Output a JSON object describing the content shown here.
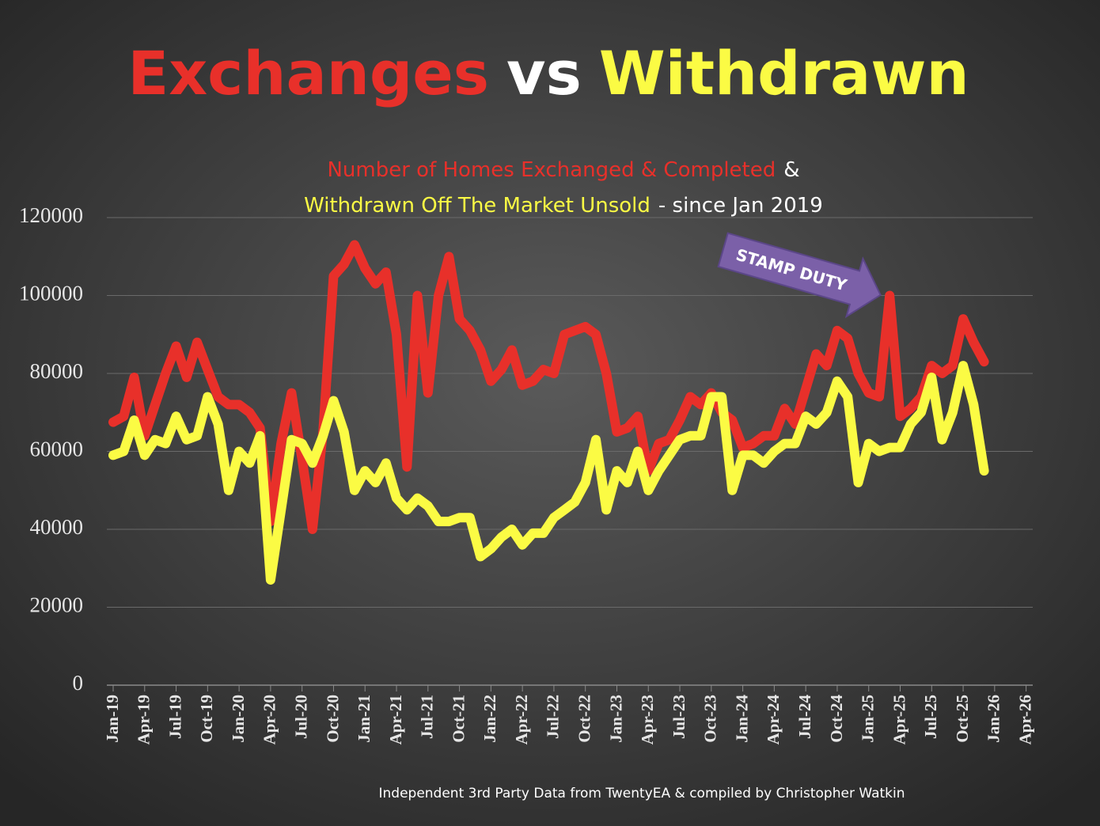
{
  "chart_data": {
    "type": "line",
    "title_parts": [
      {
        "text": "Exchanges",
        "color": "#e8302a"
      },
      {
        "text": "vs",
        "color": "#ffffff"
      },
      {
        "text": "Withdrawn",
        "color": "#fbfb44"
      }
    ],
    "subtitle_lines": [
      [
        {
          "text": "Number of Homes Exchanged & Completed",
          "color": "#e8302a"
        },
        {
          "text": "&",
          "color": "#ffffff"
        }
      ],
      [
        {
          "text": "Withdrawn Off The Market Unsold",
          "color": "#fbfb44"
        },
        {
          "text": "- since Jan 2019",
          "color": "#ffffff"
        }
      ]
    ],
    "annotation": "STAMP DUTY",
    "footer": "Independent 3rd Party Data from TwentyEA  & compiled by Christopher Watkin",
    "categories": [
      "Jan-19",
      null,
      null,
      "Apr-19",
      null,
      null,
      "Jul-19",
      null,
      null,
      "Oct-19",
      null,
      null,
      "Jan-20",
      null,
      null,
      "Apr-20",
      null,
      null,
      "Jul-20",
      null,
      null,
      "Oct-20",
      null,
      null,
      "Jan-21",
      null,
      null,
      "Apr-21",
      null,
      null,
      "Jul-21",
      null,
      null,
      "Oct-21",
      null,
      null,
      "Jan-22",
      null,
      null,
      "Apr-22",
      null,
      null,
      "Jul-22",
      null,
      null,
      "Oct-22",
      null,
      null,
      "Jan-23",
      null,
      null,
      "Apr-23",
      null,
      null,
      "Jul-23",
      null,
      null,
      "Oct-23",
      null,
      null,
      "Jan-24",
      null,
      null,
      "Apr-24",
      null,
      null,
      "Jul-24",
      null,
      null,
      "Oct-24",
      null,
      null,
      "Jan-25",
      null,
      null,
      "Apr-25",
      null,
      null,
      "Jul-25",
      null,
      null,
      "Oct-25",
      null,
      null,
      "Jan-26",
      null,
      null,
      "Apr-26"
    ],
    "series": [
      {
        "color": "#e8302a",
        "values": [
          67500,
          69000,
          79000,
          64000,
          72000,
          80000,
          87000,
          79000,
          88000,
          81000,
          74000,
          72000,
          72000,
          70000,
          66000,
          42000,
          62000,
          75000,
          58000,
          40000,
          65000,
          105000,
          108000,
          113000,
          107000,
          103000,
          106000,
          90000,
          56000,
          100000,
          75000,
          100000,
          110000,
          94000,
          91000,
          86000,
          78000,
          81000,
          86000,
          77000,
          78000,
          81000,
          80000,
          90000,
          91000,
          92000,
          90000,
          80000,
          65000,
          66000,
          69000,
          55000,
          62000,
          63000,
          68000,
          74000,
          72000,
          75000,
          70000,
          68000,
          61000,
          62000,
          64000,
          64000,
          71000,
          67000,
          76000,
          85000,
          82000,
          91000,
          89000,
          80000,
          75000,
          74000,
          100000,
          69000,
          71000,
          74000,
          82000,
          80000,
          82000,
          94000,
          88000,
          83000,
          null,
          null,
          null,
          null
        ]
      },
      {
        "color": "#fbfb44",
        "values": [
          59000,
          60000,
          68000,
          59000,
          63000,
          62000,
          69000,
          63000,
          64000,
          74000,
          67000,
          50000,
          60000,
          57000,
          64000,
          27000,
          45000,
          63000,
          62000,
          57000,
          64000,
          73000,
          65000,
          50000,
          55000,
          52000,
          57000,
          48000,
          45000,
          48000,
          46000,
          42000,
          42000,
          43000,
          43000,
          33000,
          35000,
          38000,
          40000,
          36000,
          39000,
          39000,
          43000,
          45000,
          47000,
          52000,
          63000,
          45000,
          55000,
          52000,
          60000,
          50000,
          55000,
          59000,
          63000,
          64000,
          64000,
          74000,
          74000,
          50000,
          59000,
          59000,
          57000,
          60000,
          62000,
          62000,
          69000,
          67000,
          70000,
          78000,
          74000,
          52000,
          62000,
          60000,
          61000,
          61000,
          67000,
          70000,
          79000,
          63000,
          70000,
          82000,
          72000,
          55000,
          null,
          null,
          null,
          null
        ]
      }
    ],
    "ylim": [
      0,
      120000
    ],
    "yticks": [
      0,
      20000,
      40000,
      60000,
      80000,
      100000,
      120000
    ],
    "grid": true
  }
}
